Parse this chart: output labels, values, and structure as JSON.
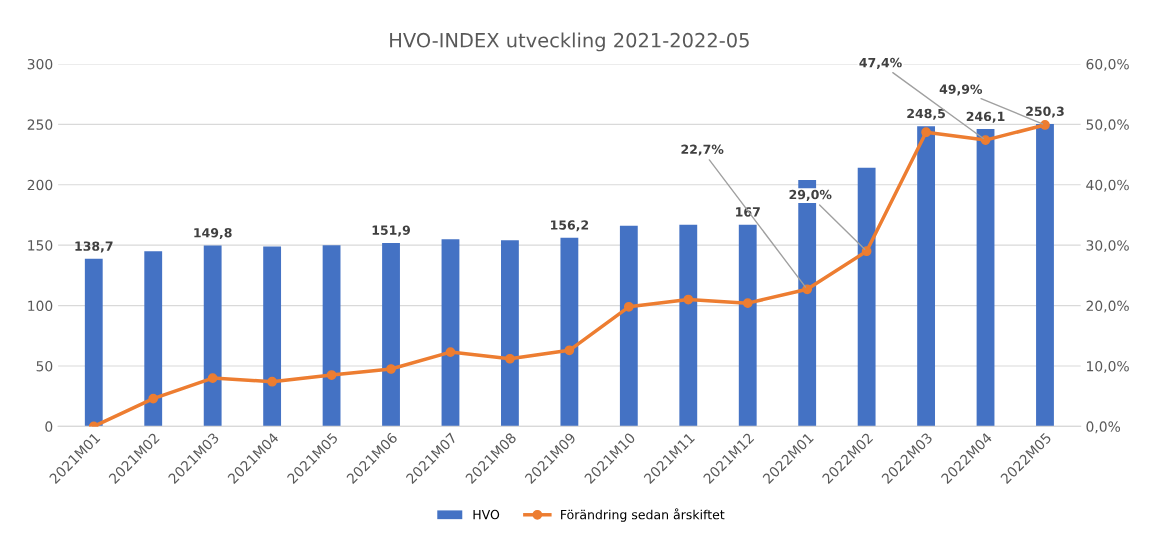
{
  "chart_data": {
    "type": "bar",
    "title": "HVO-INDEX utveckling 2021-2022-05",
    "categories": [
      "2021M01",
      "2021M02",
      "2021M03",
      "2021M04",
      "2021M05",
      "2021M06",
      "2021M07",
      "2021M08",
      "2021M09",
      "2021M10",
      "2021M11",
      "2021M12",
      "2022M01",
      "2022M02",
      "2022M03",
      "2022M04",
      "2022M05"
    ],
    "series": [
      {
        "name": "HVO",
        "color": "#4472c4",
        "values": [
          138.7,
          145,
          149.8,
          149,
          150,
          151.9,
          155,
          154,
          156.2,
          166,
          167,
          167,
          204,
          214,
          248.5,
          246.1,
          250.3
        ],
        "value_labels": [
          "138,7",
          null,
          "149,8",
          null,
          null,
          "151,9",
          null,
          null,
          "156,2",
          null,
          null,
          "167",
          null,
          null,
          "248,5",
          "246,1",
          "250,3"
        ]
      },
      {
        "name": "Förändring sedan årskiftet",
        "type": "line",
        "axis": "y2",
        "color": "#ed7d31",
        "marker": "circle",
        "values": [
          0,
          4.6,
          8.0,
          7.4,
          8.5,
          9.5,
          12.3,
          11.2,
          12.6,
          19.8,
          21,
          20.4,
          22.7,
          29.0,
          48.7,
          47.4,
          49.9
        ],
        "value_labels": [
          null,
          null,
          null,
          null,
          null,
          null,
          null,
          null,
          null,
          null,
          null,
          null,
          "22,7%",
          "29,0%",
          null,
          "47,4%",
          "49,9%"
        ]
      }
    ],
    "ylim": [
      0,
      300
    ],
    "yticks": [
      0,
      50,
      100,
      150,
      200,
      250,
      300
    ],
    "y2lim": [
      0,
      60
    ],
    "y2ticks": [
      {
        "value": 0,
        "label": "0,0%"
      },
      {
        "value": 10,
        "label": "10,0%"
      },
      {
        "value": 20,
        "label": "20,0%"
      },
      {
        "value": 30,
        "label": "30,0%"
      },
      {
        "value": 40,
        "label": "40,0%"
      },
      {
        "value": 50,
        "label": "50,0%"
      },
      {
        "value": 60,
        "label": "60,0%"
      }
    ],
    "grid": "y",
    "legend": "bottom"
  }
}
